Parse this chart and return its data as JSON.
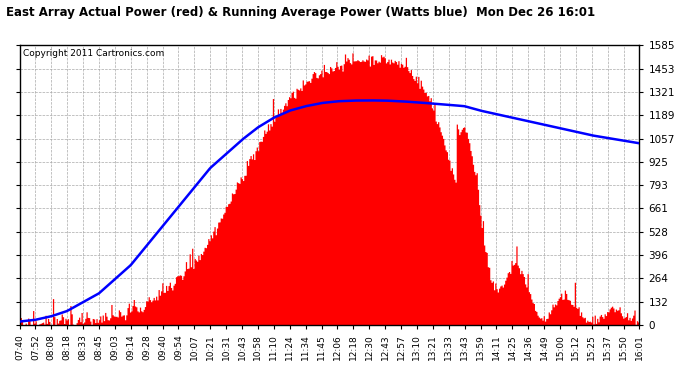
{
  "title": "East Array Actual Power (red) & Running Average Power (Watts blue)  Mon Dec 26 16:01",
  "copyright": "Copyright 2011 Cartronics.com",
  "ylim": [
    0.0,
    1585.4
  ],
  "yticks": [
    0.0,
    132.1,
    264.2,
    396.4,
    528.5,
    660.6,
    792.7,
    924.8,
    1057.0,
    1189.1,
    1321.2,
    1453.3,
    1585.4
  ],
  "fill_color": "#ff0000",
  "avg_color": "#0000ff",
  "background_color": "#ffffff",
  "grid_color": "#aaaaaa",
  "x_labels": [
    "07:40",
    "07:52",
    "08:08",
    "08:18",
    "08:33",
    "08:45",
    "09:03",
    "09:14",
    "09:28",
    "09:40",
    "09:54",
    "10:07",
    "10:21",
    "10:31",
    "10:43",
    "10:58",
    "11:10",
    "11:24",
    "11:34",
    "11:45",
    "12:06",
    "12:18",
    "12:30",
    "12:43",
    "12:57",
    "13:10",
    "13:21",
    "13:33",
    "13:43",
    "13:59",
    "14:11",
    "14:25",
    "14:36",
    "14:49",
    "15:00",
    "15:12",
    "15:25",
    "15:37",
    "15:50",
    "16:01"
  ],
  "avg_power": [
    20,
    30,
    50,
    80,
    130,
    180,
    260,
    340,
    450,
    560,
    670,
    780,
    890,
    970,
    1050,
    1120,
    1175,
    1215,
    1240,
    1258,
    1268,
    1272,
    1273,
    1272,
    1268,
    1262,
    1255,
    1248,
    1240,
    1215,
    1195,
    1175,
    1155,
    1135,
    1115,
    1095,
    1075,
    1060,
    1045,
    1030
  ],
  "n_dense": 500,
  "seed": 42
}
